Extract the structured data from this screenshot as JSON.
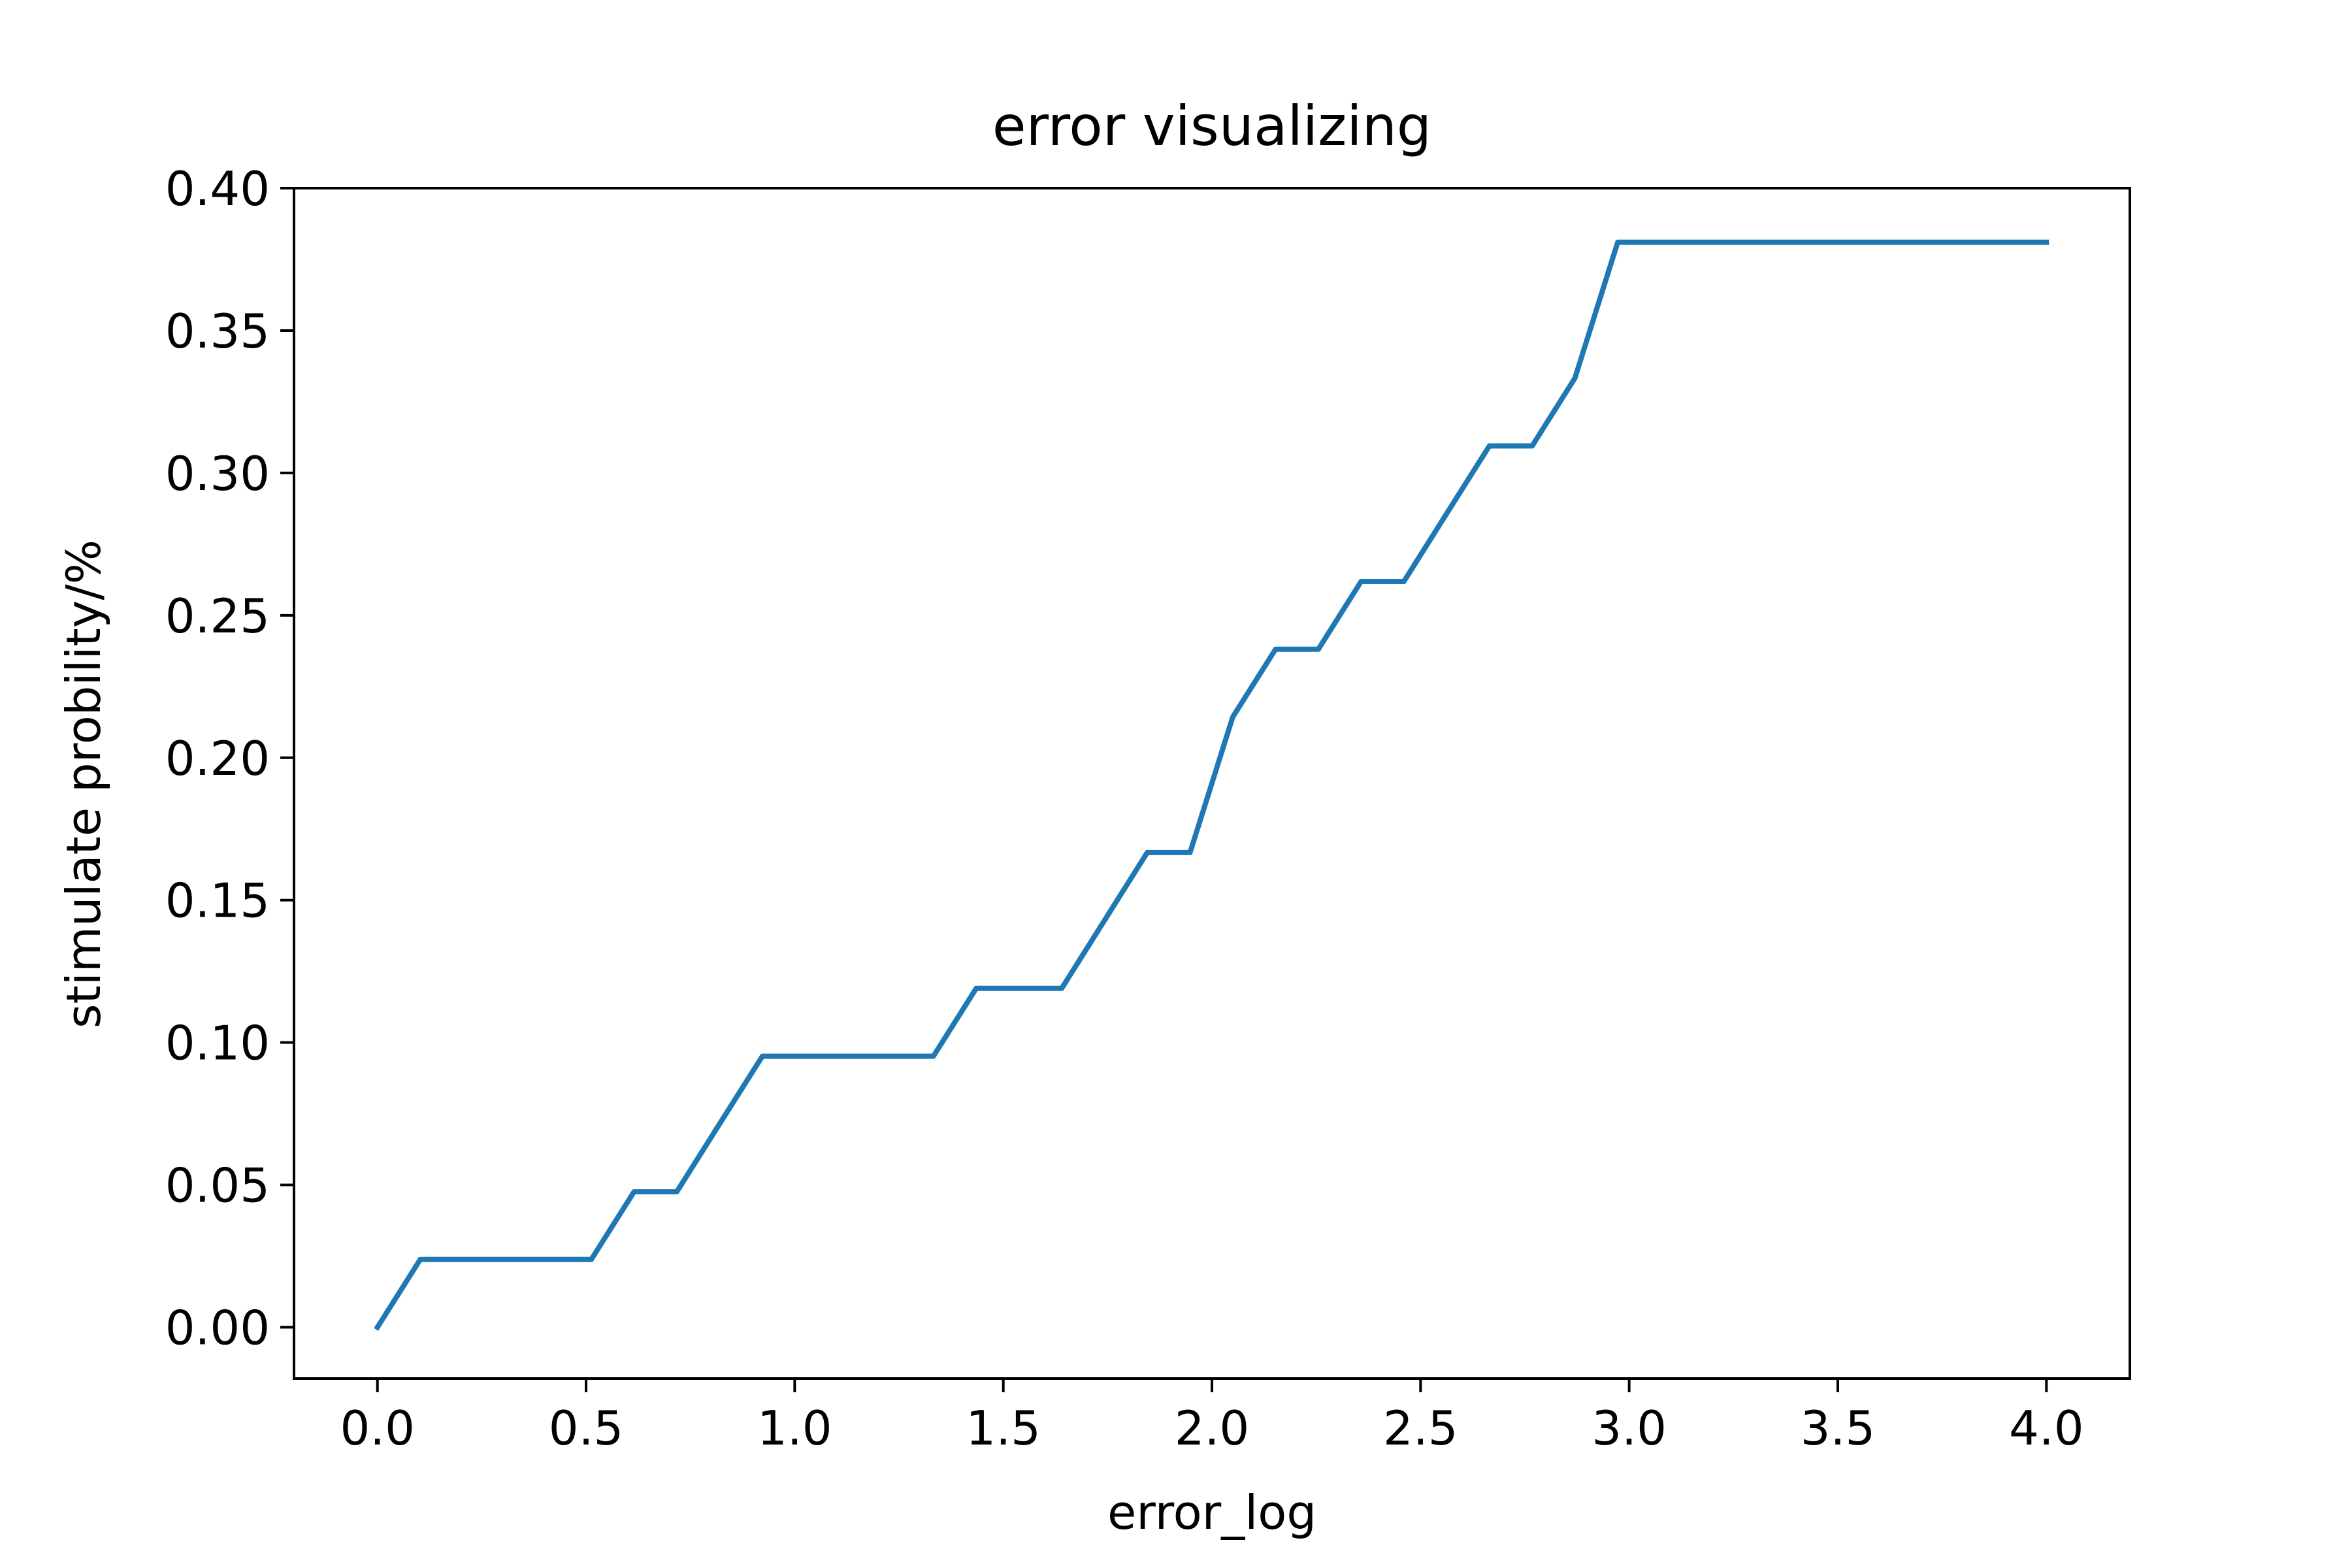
{
  "chart_data": {
    "type": "line",
    "title": "error visualizing",
    "xlabel": "error_log",
    "ylabel": "stimulate probility/%",
    "xlim": [
      -0.2,
      4.2
    ],
    "ylim": [
      -0.018,
      0.4
    ],
    "xticks": [
      0.0,
      0.5,
      1.0,
      1.5,
      2.0,
      2.5,
      3.0,
      3.5,
      4.0
    ],
    "xtick_labels": [
      "0.0",
      "0.5",
      "1.0",
      "1.5",
      "2.0",
      "2.5",
      "3.0",
      "3.5",
      "4.0"
    ],
    "yticks": [
      0.0,
      0.05,
      0.1,
      0.15,
      0.2,
      0.25,
      0.3,
      0.35,
      0.4
    ],
    "ytick_labels": [
      "0.00",
      "0.05",
      "0.10",
      "0.15",
      "0.20",
      "0.25",
      "0.30",
      "0.35",
      "0.40"
    ],
    "grid": false,
    "series": [
      {
        "color": "#1f77b4",
        "x": [
          0.0,
          0.1025,
          0.205,
          0.3075,
          0.41,
          0.5125,
          0.615,
          0.7175,
          0.82,
          0.9225,
          1.025,
          1.1275,
          1.23,
          1.3325,
          1.435,
          1.5375,
          1.64,
          1.7425,
          1.845,
          1.9475,
          2.05,
          2.1525,
          2.255,
          2.3575,
          2.46,
          2.5625,
          2.665,
          2.7675,
          2.87,
          2.9725,
          3.075,
          3.1775,
          3.28,
          3.3825,
          3.485,
          3.5875,
          3.69,
          3.7925,
          3.895,
          4.0
        ],
        "values": [
          0.0,
          0.0238,
          0.0238,
          0.0238,
          0.0238,
          0.0238,
          0.0476,
          0.0476,
          0.0714,
          0.0952,
          0.0952,
          0.0952,
          0.0952,
          0.0952,
          0.119,
          0.119,
          0.119,
          0.1429,
          0.1667,
          0.1667,
          0.2143,
          0.2381,
          0.2381,
          0.2619,
          0.2619,
          0.2857,
          0.3095,
          0.3095,
          0.3333,
          0.381,
          0.381,
          0.381,
          0.381,
          0.381,
          0.381,
          0.381,
          0.381,
          0.381,
          0.381,
          0.381
        ]
      }
    ]
  }
}
